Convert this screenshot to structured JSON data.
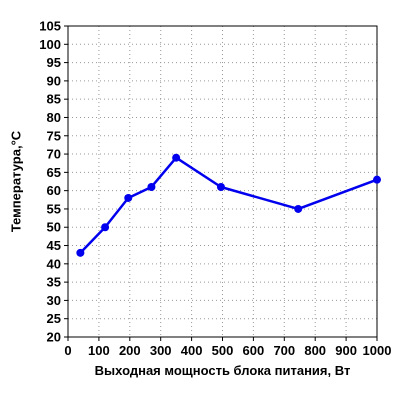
{
  "chart_data": {
    "type": "line",
    "title": "",
    "xlabel": "Выходная мощность блока питания, Вт",
    "ylabel": "Температура,°С",
    "xlim": [
      0,
      1000
    ],
    "ylim": [
      20,
      105
    ],
    "x_ticks": [
      "0",
      "100",
      "200",
      "300",
      "400",
      "500",
      "600",
      "700",
      "800",
      "900",
      "1000"
    ],
    "y_ticks": [
      "20",
      "25",
      "30",
      "35",
      "40",
      "45",
      "50",
      "55",
      "60",
      "65",
      "70",
      "75",
      "80",
      "85",
      "90",
      "95",
      "100",
      "105"
    ],
    "grid": true,
    "series": [
      {
        "color": "#0000ee",
        "x": [
          40,
          120,
          195,
          270,
          350,
          495,
          745,
          1000
        ],
        "y": [
          43,
          50,
          58,
          61,
          69,
          61,
          55,
          63
        ]
      }
    ]
  }
}
